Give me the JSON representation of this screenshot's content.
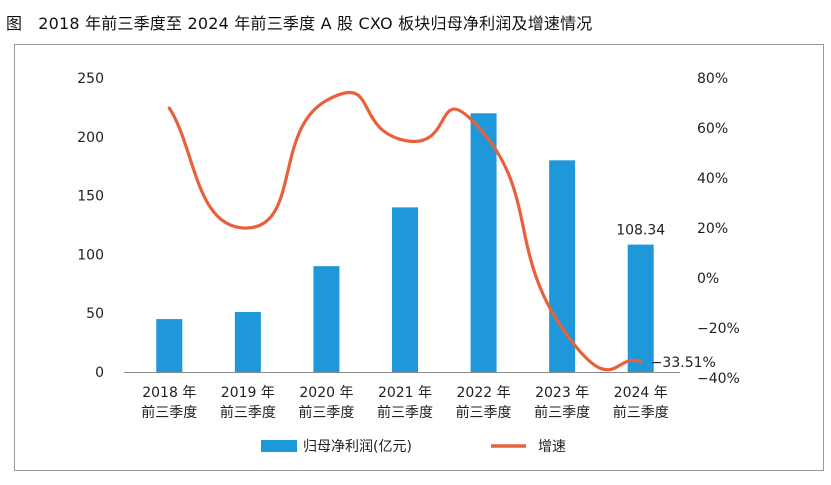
{
  "figure": {
    "label": "图",
    "title": "2018 年前三季度至 2024 年前三季度 A 股 CXO 板块归母净利润及增速情况"
  },
  "chart_data": {
    "type": "bar",
    "categories": [
      [
        "2018 年",
        "前三季度"
      ],
      [
        "2019 年",
        "前三季度"
      ],
      [
        "2020 年",
        "前三季度"
      ],
      [
        "2021 年",
        "前三季度"
      ],
      [
        "2022 年",
        "前三季度"
      ],
      [
        "2023 年",
        "前三季度"
      ],
      [
        "2024 年",
        "前三季度"
      ]
    ],
    "series": [
      {
        "name": "归母净利润(亿元)",
        "type": "bar",
        "axis": "left",
        "values": [
          45,
          51,
          90,
          140,
          220,
          180,
          108.34
        ],
        "color": "#1f98d9"
      },
      {
        "name": "增速",
        "type": "line",
        "axis": "right",
        "values": [
          68,
          20,
          71,
          55,
          58,
          -20,
          -33.51
        ],
        "color": "#e8603c"
      }
    ],
    "y_left": {
      "min": 0,
      "max": 250,
      "ticks": [
        0,
        50,
        100,
        150,
        200,
        250
      ]
    },
    "y_right": {
      "min": -40,
      "max": 80,
      "ticks": [
        -40,
        -20,
        0,
        20,
        40,
        60,
        80
      ],
      "tick_labels": [
        "−40%",
        "−20%",
        "0%",
        "20%",
        "40%",
        "60%",
        "80%"
      ]
    },
    "data_labels": [
      {
        "series": 0,
        "index": 6,
        "text": "108.34"
      },
      {
        "series": 1,
        "index": 6,
        "text": "−33.51%"
      }
    ],
    "legend": {
      "placement": "bottom-center",
      "items": [
        "归母净利润(亿元)",
        "增速"
      ]
    },
    "grid": false
  }
}
